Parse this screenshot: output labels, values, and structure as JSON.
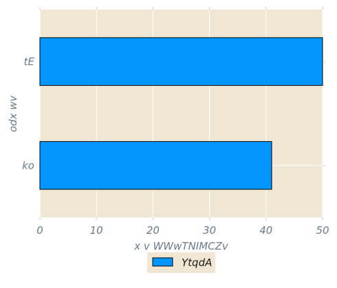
{
  "chart_data": {
    "type": "bar",
    "orientation": "horizontal",
    "title": "",
    "xlabel": "x v WWwTNIMCZv",
    "ylabel": "odx wv",
    "categories": [
      "ko",
      "tE"
    ],
    "series": [
      {
        "name": "YtqdA",
        "values": [
          41,
          50
        ],
        "color": "#0396ff"
      }
    ],
    "xlim": [
      0,
      50
    ],
    "xticks": [
      "0",
      "10",
      "20",
      "30",
      "40",
      "50"
    ],
    "grid": true,
    "legend": "bottom-center",
    "colors": {
      "plot_background": "#efe7d3",
      "grid": "#ffffff",
      "bar_edge": "#000000",
      "text": "#6b7b8c"
    }
  }
}
